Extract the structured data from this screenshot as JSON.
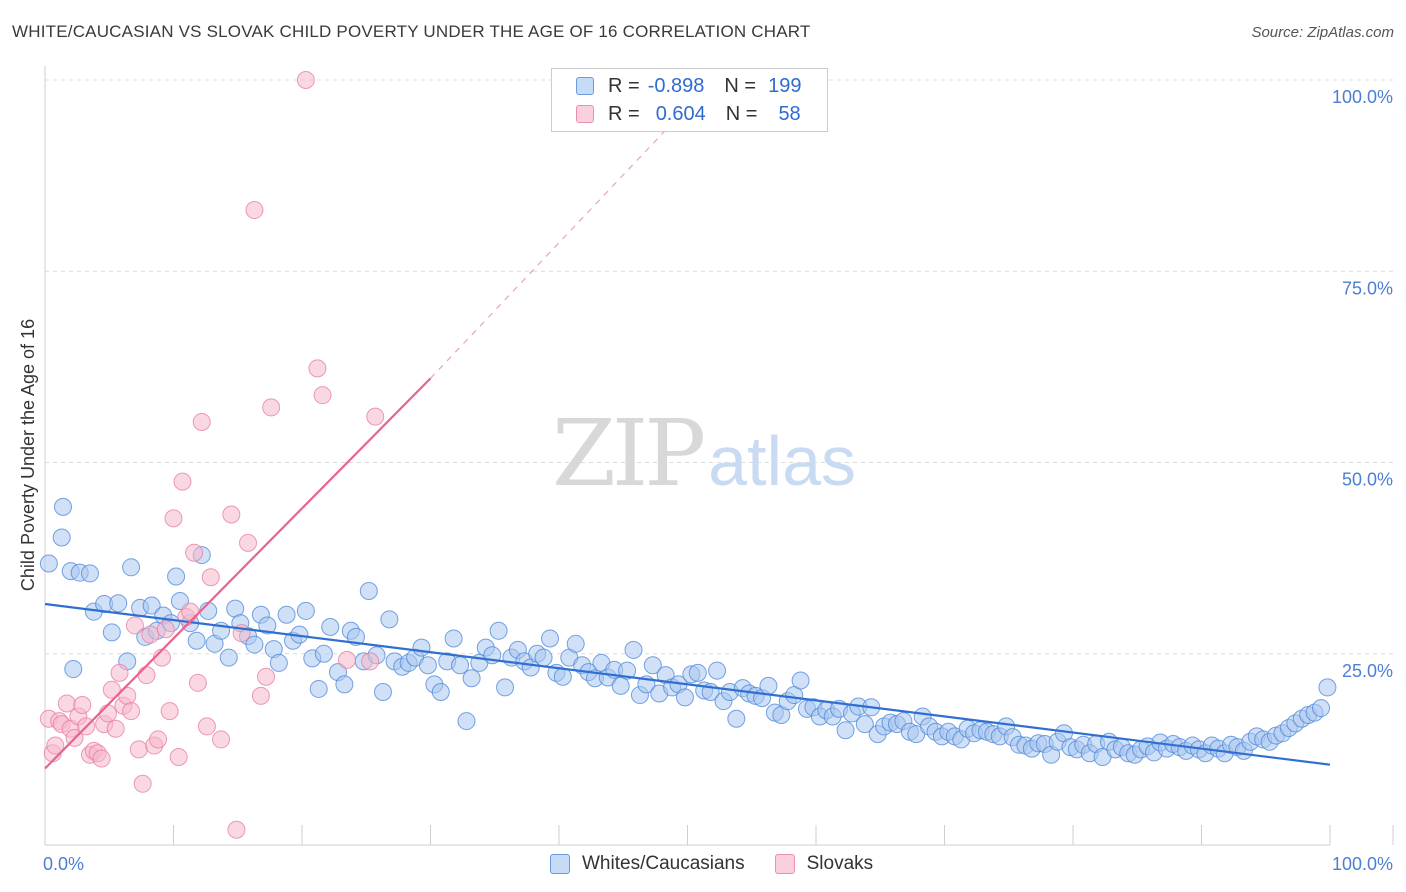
{
  "title": "WHITE/CAUCASIAN VS SLOVAK CHILD POVERTY UNDER THE AGE OF 16 CORRELATION CHART",
  "source": "Source: ZipAtlas.com",
  "watermark": {
    "part1": "ZIP",
    "part2": "atlas"
  },
  "legend": {
    "rows": [
      {
        "r_label": "R =",
        "r_value": "-0.898",
        "n_label": "N =",
        "n_value": "199",
        "color": "#a9c6f0"
      },
      {
        "r_label": "R =",
        "r_value": "0.604",
        "n_label": "N =",
        "n_value": "58",
        "color": "#f6b8cb"
      }
    ]
  },
  "bottom_legend": [
    {
      "label": "Whites/Caucasians",
      "color": "#a9c6f0"
    },
    {
      "label": "Slovaks",
      "color": "#f6b8cb"
    }
  ],
  "chart_data": {
    "type": "scatter",
    "title": "WHITE/CAUCASIAN VS SLOVAK CHILD POVERTY UNDER THE AGE OF 16 CORRELATION CHART",
    "xlabel": "",
    "ylabel": "Child Poverty Under the Age of 16",
    "xlim": [
      0,
      100
    ],
    "ylim": [
      0,
      100
    ],
    "x_tick_labels": [
      "0.0%",
      "100.0%"
    ],
    "y_tick_labels": [
      "25.0%",
      "50.0%",
      "75.0%",
      "100.0%"
    ],
    "y_ticks": [
      25,
      50,
      75,
      100
    ],
    "grid": true,
    "series": [
      {
        "name": "Whites/Caucasians",
        "color": "#4a86d8",
        "fill": "#a9c6f0",
        "trend": {
          "x0": 0,
          "y0": 31.5,
          "x1": 100,
          "y1": 10.5,
          "color": "#2f6fd0"
        },
        "points": [
          [
            0.3,
            36.8
          ],
          [
            1.3,
            40.2
          ],
          [
            1.4,
            44.2
          ],
          [
            2.0,
            35.8
          ],
          [
            2.2,
            23.0
          ],
          [
            2.7,
            35.6
          ],
          [
            3.5,
            35.5
          ],
          [
            3.8,
            30.5
          ],
          [
            4.6,
            31.5
          ],
          [
            5.2,
            27.8
          ],
          [
            5.7,
            31.6
          ],
          [
            6.4,
            24.0
          ],
          [
            6.7,
            36.3
          ],
          [
            7.4,
            31.0
          ],
          [
            7.8,
            27.2
          ],
          [
            8.3,
            31.3
          ],
          [
            8.7,
            28.0
          ],
          [
            9.2,
            30.0
          ],
          [
            9.8,
            29.0
          ],
          [
            10.2,
            35.1
          ],
          [
            10.5,
            31.9
          ],
          [
            11.3,
            29.0
          ],
          [
            11.8,
            26.7
          ],
          [
            12.2,
            37.9
          ],
          [
            12.7,
            30.6
          ],
          [
            13.2,
            26.3
          ],
          [
            13.7,
            28.0
          ],
          [
            14.3,
            24.5
          ],
          [
            14.8,
            30.9
          ],
          [
            15.2,
            29.0
          ],
          [
            15.8,
            27.3
          ],
          [
            16.3,
            26.2
          ],
          [
            16.8,
            30.1
          ],
          [
            17.3,
            28.7
          ],
          [
            17.8,
            25.6
          ],
          [
            18.2,
            23.8
          ],
          [
            18.8,
            30.1
          ],
          [
            19.3,
            26.7
          ],
          [
            19.8,
            27.5
          ],
          [
            20.3,
            30.6
          ],
          [
            20.8,
            24.4
          ],
          [
            21.3,
            20.4
          ],
          [
            21.7,
            25.0
          ],
          [
            22.2,
            28.5
          ],
          [
            22.8,
            22.6
          ],
          [
            23.3,
            21.0
          ],
          [
            23.8,
            28.0
          ],
          [
            24.2,
            27.2
          ],
          [
            24.8,
            24.0
          ],
          [
            25.2,
            33.2
          ],
          [
            25.8,
            24.8
          ],
          [
            26.3,
            20.0
          ],
          [
            26.8,
            29.5
          ],
          [
            27.2,
            24.0
          ],
          [
            27.8,
            23.3
          ],
          [
            28.3,
            23.8
          ],
          [
            28.8,
            24.5
          ],
          [
            29.3,
            25.8
          ],
          [
            29.8,
            23.5
          ],
          [
            30.3,
            21.0
          ],
          [
            30.8,
            20.0
          ],
          [
            31.3,
            24.0
          ],
          [
            31.8,
            27.0
          ],
          [
            32.3,
            23.5
          ],
          [
            32.8,
            16.2
          ],
          [
            33.2,
            21.8
          ],
          [
            33.8,
            23.8
          ],
          [
            34.3,
            25.8
          ],
          [
            34.8,
            24.8
          ],
          [
            35.3,
            28.0
          ],
          [
            35.8,
            20.6
          ],
          [
            36.3,
            24.5
          ],
          [
            36.8,
            25.5
          ],
          [
            37.3,
            24.0
          ],
          [
            37.8,
            23.2
          ],
          [
            38.3,
            25.0
          ],
          [
            38.8,
            24.5
          ],
          [
            39.3,
            27.0
          ],
          [
            39.8,
            22.5
          ],
          [
            40.3,
            22.0
          ],
          [
            40.8,
            24.5
          ],
          [
            41.3,
            26.3
          ],
          [
            41.8,
            23.5
          ],
          [
            42.3,
            22.6
          ],
          [
            42.8,
            21.8
          ],
          [
            43.3,
            23.8
          ],
          [
            43.8,
            21.9
          ],
          [
            44.3,
            22.9
          ],
          [
            44.8,
            20.8
          ],
          [
            45.3,
            22.8
          ],
          [
            45.8,
            25.5
          ],
          [
            46.3,
            19.6
          ],
          [
            46.8,
            21.0
          ],
          [
            47.3,
            23.5
          ],
          [
            47.8,
            19.8
          ],
          [
            48.3,
            22.2
          ],
          [
            48.8,
            20.6
          ],
          [
            49.3,
            21.0
          ],
          [
            49.8,
            19.3
          ],
          [
            50.3,
            22.3
          ],
          [
            50.8,
            22.5
          ],
          [
            51.3,
            20.2
          ],
          [
            51.8,
            20.0
          ],
          [
            52.3,
            22.8
          ],
          [
            52.8,
            18.8
          ],
          [
            53.3,
            20.0
          ],
          [
            53.8,
            16.5
          ],
          [
            54.3,
            20.5
          ],
          [
            54.8,
            19.8
          ],
          [
            55.3,
            19.5
          ],
          [
            55.8,
            19.2
          ],
          [
            56.3,
            20.8
          ],
          [
            56.8,
            17.3
          ],
          [
            57.3,
            17.0
          ],
          [
            57.8,
            18.8
          ],
          [
            58.3,
            19.6
          ],
          [
            58.8,
            21.5
          ],
          [
            59.3,
            17.8
          ],
          [
            59.8,
            18.0
          ],
          [
            60.3,
            16.8
          ],
          [
            60.8,
            17.6
          ],
          [
            61.3,
            16.8
          ],
          [
            61.8,
            17.8
          ],
          [
            62.3,
            15.0
          ],
          [
            62.8,
            17.2
          ],
          [
            63.3,
            18.1
          ],
          [
            63.8,
            15.8
          ],
          [
            64.3,
            18.0
          ],
          [
            64.8,
            14.5
          ],
          [
            65.3,
            15.5
          ],
          [
            65.8,
            16.0
          ],
          [
            66.3,
            15.8
          ],
          [
            66.8,
            16.2
          ],
          [
            67.3,
            14.8
          ],
          [
            67.8,
            14.5
          ],
          [
            68.3,
            16.8
          ],
          [
            68.8,
            15.5
          ],
          [
            69.3,
            14.8
          ],
          [
            69.8,
            14.2
          ],
          [
            70.3,
            14.8
          ],
          [
            70.8,
            14.2
          ],
          [
            71.3,
            13.8
          ],
          [
            71.8,
            15.2
          ],
          [
            72.3,
            14.6
          ],
          [
            72.8,
            15.0
          ],
          [
            73.3,
            14.8
          ],
          [
            73.8,
            14.5
          ],
          [
            74.3,
            14.2
          ],
          [
            74.8,
            15.5
          ],
          [
            75.3,
            14.1
          ],
          [
            75.8,
            13.1
          ],
          [
            76.3,
            13.0
          ],
          [
            76.8,
            12.6
          ],
          [
            77.3,
            13.3
          ],
          [
            77.8,
            13.2
          ],
          [
            78.3,
            11.8
          ],
          [
            78.8,
            13.5
          ],
          [
            79.3,
            14.6
          ],
          [
            79.8,
            12.8
          ],
          [
            80.3,
            12.5
          ],
          [
            80.8,
            13.1
          ],
          [
            81.3,
            12.0
          ],
          [
            81.8,
            13.2
          ],
          [
            82.3,
            11.5
          ],
          [
            82.8,
            13.5
          ],
          [
            83.3,
            12.5
          ],
          [
            83.8,
            12.8
          ],
          [
            84.3,
            12.0
          ],
          [
            84.8,
            11.8
          ],
          [
            85.3,
            12.5
          ],
          [
            85.8,
            12.9
          ],
          [
            86.3,
            12.1
          ],
          [
            86.8,
            13.4
          ],
          [
            87.3,
            12.6
          ],
          [
            87.8,
            13.2
          ],
          [
            88.3,
            12.8
          ],
          [
            88.8,
            12.3
          ],
          [
            89.3,
            13.0
          ],
          [
            89.8,
            12.5
          ],
          [
            90.3,
            12.0
          ],
          [
            90.8,
            13.0
          ],
          [
            91.3,
            12.6
          ],
          [
            91.8,
            12.0
          ],
          [
            92.3,
            13.1
          ],
          [
            92.8,
            12.8
          ],
          [
            93.3,
            12.3
          ],
          [
            93.8,
            13.5
          ],
          [
            94.3,
            14.2
          ],
          [
            94.8,
            13.8
          ],
          [
            95.3,
            13.5
          ],
          [
            95.8,
            14.3
          ],
          [
            96.3,
            14.6
          ],
          [
            96.8,
            15.3
          ],
          [
            97.3,
            15.9
          ],
          [
            97.8,
            16.5
          ],
          [
            98.3,
            17.0
          ],
          [
            98.8,
            17.3
          ],
          [
            99.3,
            17.9
          ],
          [
            99.8,
            20.6
          ]
        ]
      },
      {
        "name": "Slovaks",
        "color": "#e87aa0",
        "fill": "#f6b8cb",
        "trend": {
          "x0": 0,
          "y0": 10.0,
          "x1": 30,
          "y1": 61.0,
          "color": "#e8638f",
          "dashed_to": {
            "x": 52,
            "y": 100
          }
        },
        "points": [
          [
            0.3,
            16.5
          ],
          [
            0.6,
            12.0
          ],
          [
            0.8,
            13.0
          ],
          [
            1.1,
            16.2
          ],
          [
            1.3,
            15.8
          ],
          [
            1.7,
            18.5
          ],
          [
            2.0,
            15.2
          ],
          [
            2.3,
            14.0
          ],
          [
            2.6,
            16.8
          ],
          [
            2.9,
            18.3
          ],
          [
            3.2,
            15.5
          ],
          [
            3.5,
            11.8
          ],
          [
            3.8,
            12.3
          ],
          [
            4.1,
            12.0
          ],
          [
            4.4,
            11.3
          ],
          [
            4.6,
            15.8
          ],
          [
            4.9,
            17.2
          ],
          [
            5.2,
            20.3
          ],
          [
            5.5,
            15.2
          ],
          [
            5.8,
            22.5
          ],
          [
            6.1,
            18.2
          ],
          [
            6.4,
            19.5
          ],
          [
            6.7,
            17.5
          ],
          [
            7.0,
            28.7
          ],
          [
            7.3,
            12.5
          ],
          [
            7.6,
            8.0
          ],
          [
            7.9,
            22.2
          ],
          [
            8.2,
            27.5
          ],
          [
            8.5,
            13.0
          ],
          [
            8.8,
            13.8
          ],
          [
            9.1,
            24.5
          ],
          [
            9.4,
            28.2
          ],
          [
            9.7,
            17.5
          ],
          [
            10.0,
            42.7
          ],
          [
            10.4,
            11.5
          ],
          [
            10.7,
            47.5
          ],
          [
            11.0,
            29.8
          ],
          [
            11.3,
            30.5
          ],
          [
            11.6,
            38.2
          ],
          [
            11.9,
            21.2
          ],
          [
            12.2,
            55.3
          ],
          [
            12.6,
            15.5
          ],
          [
            12.9,
            35.0
          ],
          [
            13.7,
            13.8
          ],
          [
            14.5,
            43.2
          ],
          [
            14.9,
            2.0
          ],
          [
            15.3,
            27.7
          ],
          [
            15.8,
            39.5
          ],
          [
            16.3,
            83.0
          ],
          [
            16.8,
            19.5
          ],
          [
            17.2,
            22.0
          ],
          [
            17.6,
            57.2
          ],
          [
            20.3,
            100.0
          ],
          [
            21.2,
            62.3
          ],
          [
            21.6,
            58.8
          ],
          [
            23.5,
            24.2
          ],
          [
            25.3,
            24.0
          ],
          [
            25.7,
            56.0
          ]
        ]
      }
    ]
  }
}
